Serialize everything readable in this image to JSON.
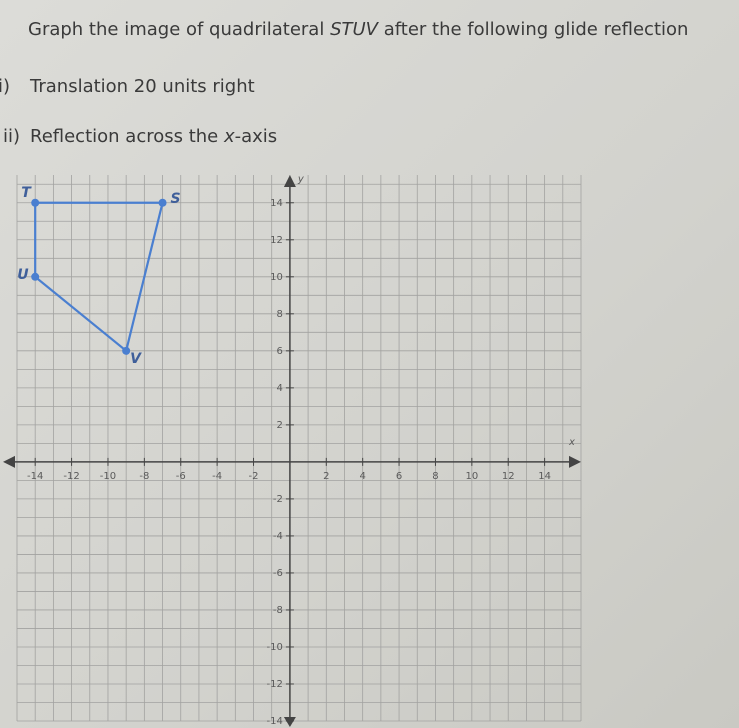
{
  "question": {
    "text_before": "Graph the image of quadrilateral ",
    "shape": "STUV",
    "text_after": " after the following glide reflection"
  },
  "steps": [
    {
      "marker": "i)",
      "text": "Translation 20 units right"
    },
    {
      "marker": "ii)",
      "text_before": "Reflection across the ",
      "var": "x",
      "text_after": "-axis"
    }
  ],
  "graph": {
    "x_label": "x",
    "y_label": "y",
    "xlim": [
      -15,
      16
    ],
    "ylim": [
      -14,
      15.5
    ],
    "xticks": [
      -14,
      -12,
      -10,
      -8,
      -6,
      -4,
      -2,
      2,
      4,
      6,
      8,
      10,
      12,
      14
    ],
    "yticks": [
      14,
      12,
      10,
      8,
      6,
      4,
      2,
      -2,
      -4,
      -6,
      -8,
      -10,
      -12,
      -14
    ],
    "color": "#4a7fd0",
    "vertices": [
      {
        "label": "S",
        "x": -7,
        "y": 14
      },
      {
        "label": "T",
        "x": -14,
        "y": 14
      },
      {
        "label": "U",
        "x": -14,
        "y": 10
      },
      {
        "label": "V",
        "x": -9,
        "y": 6
      }
    ]
  }
}
